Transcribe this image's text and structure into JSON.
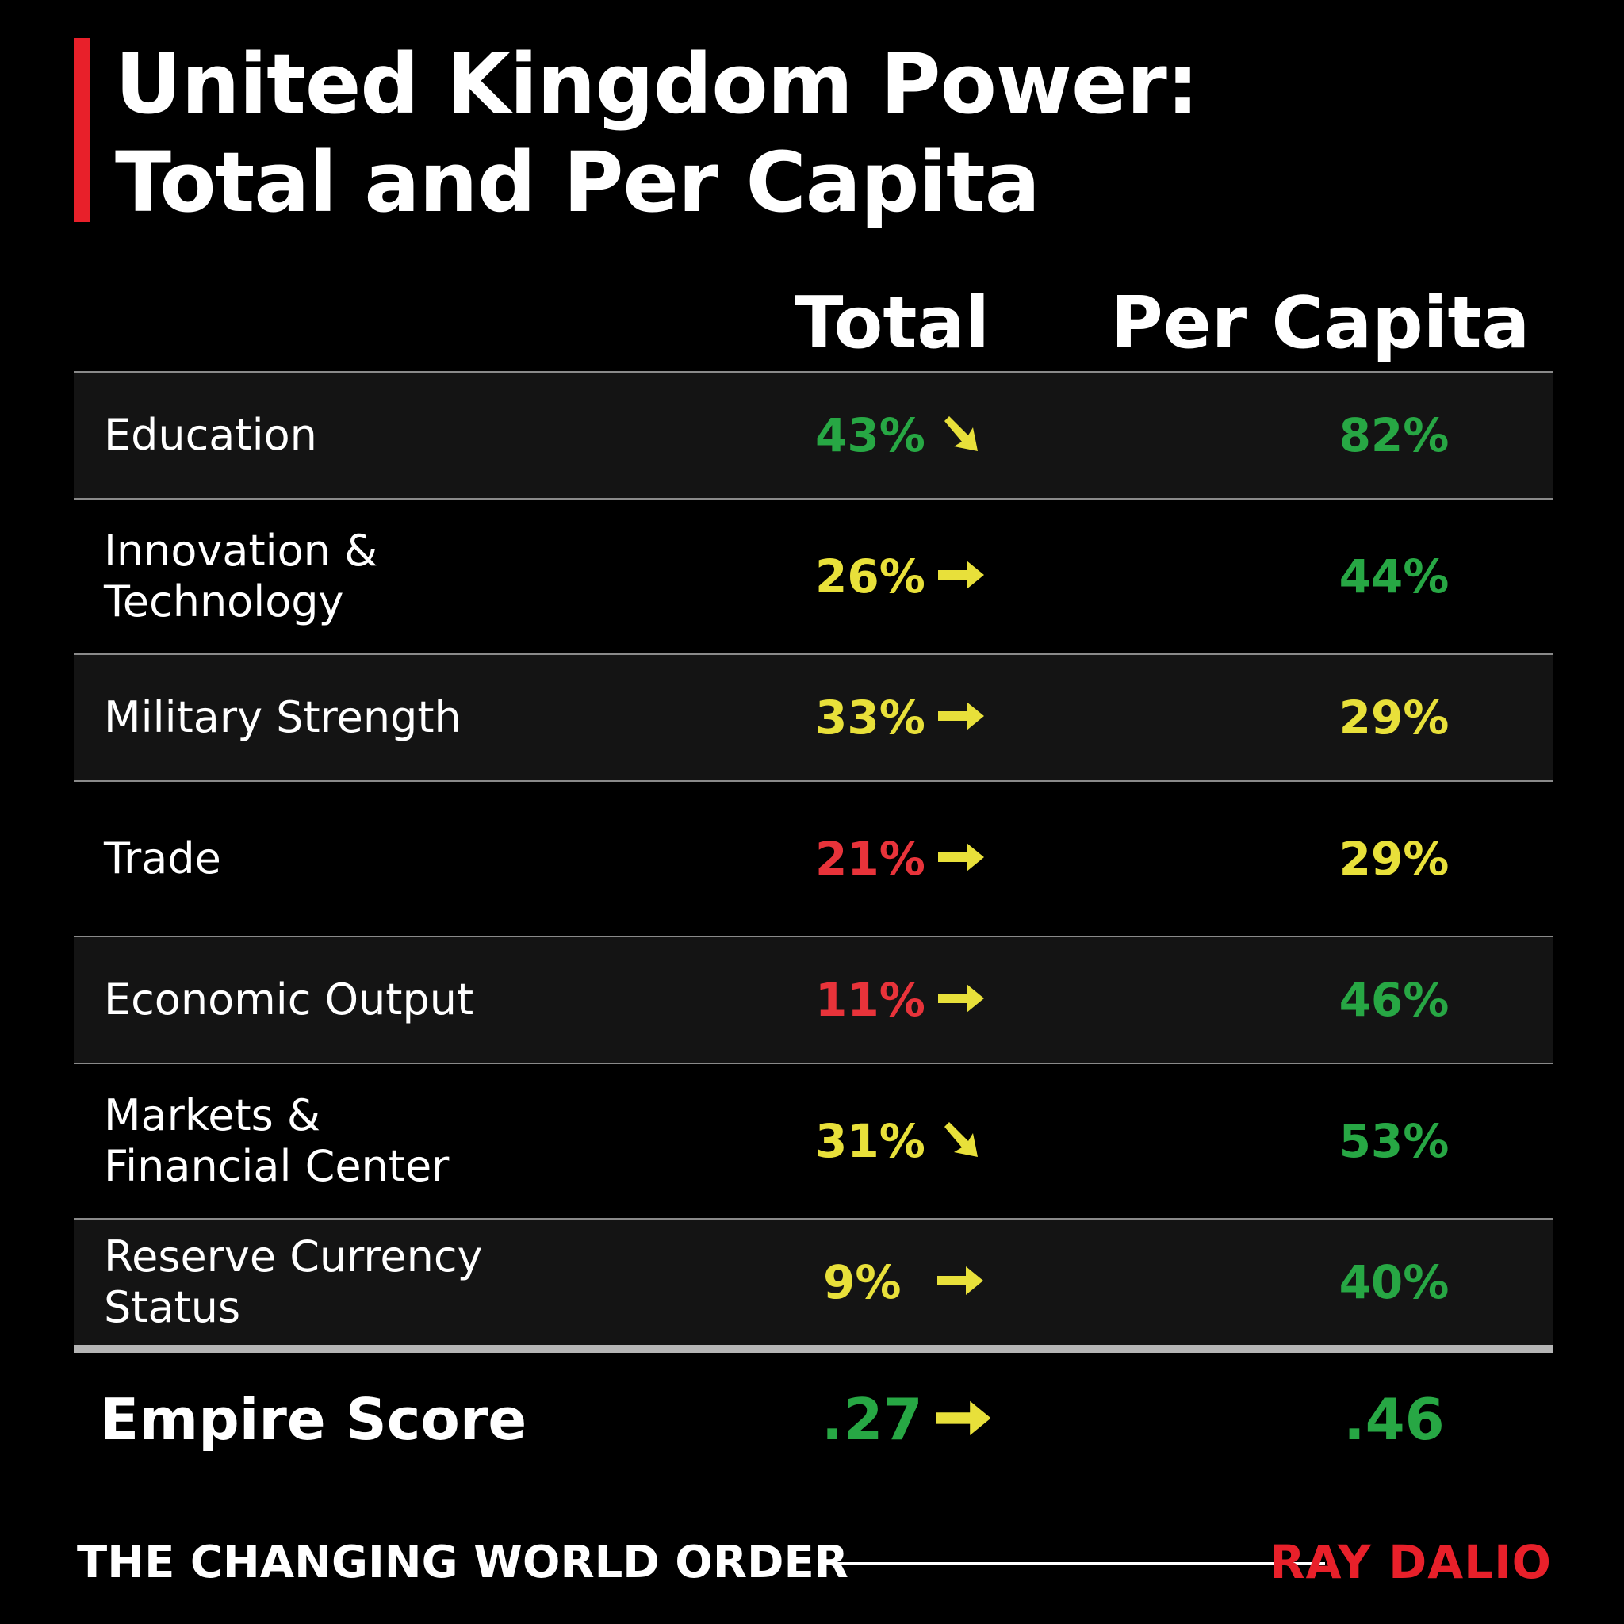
{
  "chart_data": {
    "type": "table",
    "title": "United Kingdom Power: Total and Per Capita",
    "title_lines": [
      "United Kingdom Power:",
      "Total and Per Capita"
    ],
    "columns": [
      "Total",
      "Per Capita"
    ],
    "rows": [
      {
        "label_lines": [
          "Education"
        ],
        "total": "43%",
        "total_color": "green",
        "trend": "down",
        "per_capita": "82%",
        "per_capita_color": "green"
      },
      {
        "label_lines": [
          "Innovation &",
          "Technology"
        ],
        "total": "26%",
        "total_color": "yellow",
        "trend": "flat",
        "per_capita": "44%",
        "per_capita_color": "green"
      },
      {
        "label_lines": [
          "Military Strength"
        ],
        "total": "33%",
        "total_color": "yellow",
        "trend": "flat",
        "per_capita": "29%",
        "per_capita_color": "yellow"
      },
      {
        "label_lines": [
          "Trade"
        ],
        "total": "21%",
        "total_color": "red",
        "trend": "flat",
        "per_capita": "29%",
        "per_capita_color": "yellow"
      },
      {
        "label_lines": [
          "Economic Output"
        ],
        "total": "11%",
        "total_color": "red",
        "trend": "flat",
        "per_capita": "46%",
        "per_capita_color": "green"
      },
      {
        "label_lines": [
          "Markets &",
          "Financial Center"
        ],
        "total": "31%",
        "total_color": "yellow",
        "trend": "down",
        "per_capita": "53%",
        "per_capita_color": "green"
      },
      {
        "label_lines": [
          "Reserve Currency",
          "Status"
        ],
        "total": "9%",
        "total_color": "yellow",
        "trend": "flat",
        "per_capita": "40%",
        "per_capita_color": "green"
      }
    ],
    "summary": {
      "label": "Empire Score",
      "total": ".27",
      "total_color": "green",
      "trend": "flat",
      "per_capita": ".46",
      "per_capita_color": "green"
    }
  },
  "colors": {
    "green": "#27a744",
    "yellow": "#e8e03a",
    "red": "#e8333a",
    "accent": "#e8202a",
    "arrow": "#e8e03a"
  },
  "footer": {
    "book": "THE CHANGING WORLD ORDER",
    "author": "RAY DALIO"
  }
}
